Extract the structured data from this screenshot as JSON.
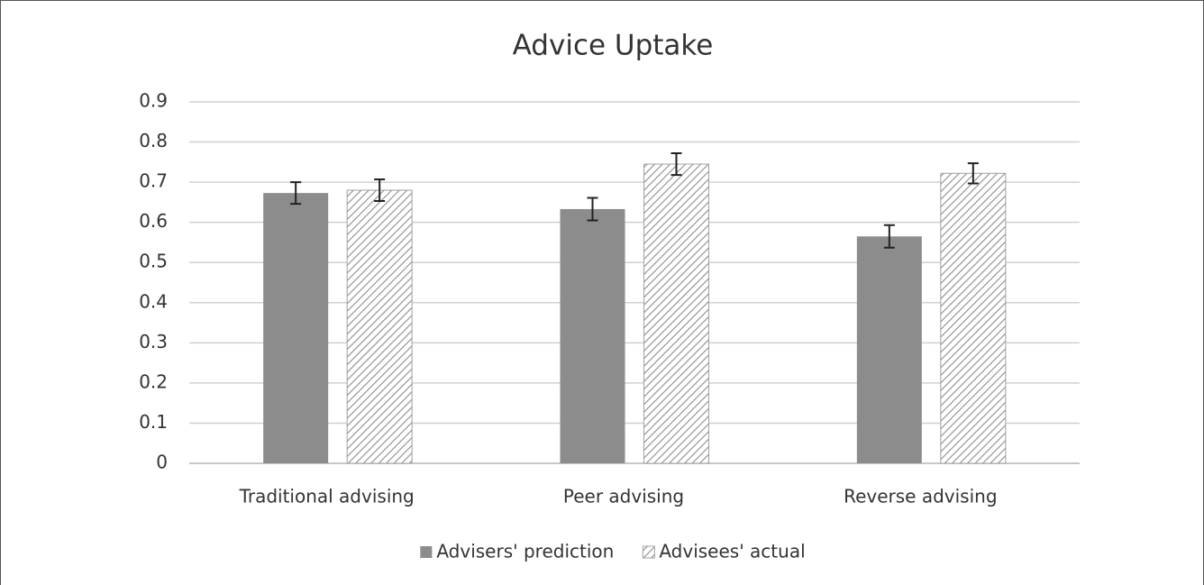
{
  "chart_data": {
    "type": "bar",
    "title": "Advice Uptake",
    "categories": [
      "Traditional advising",
      "Peer advising",
      "Reverse advising"
    ],
    "series": [
      {
        "name": "Advisers' prediction",
        "color": "#8c8c8c",
        "hatch": false,
        "values": [
          0.673,
          0.633,
          0.565
        ],
        "errors": [
          0.027,
          0.028,
          0.028
        ]
      },
      {
        "name": "Advisees' actual",
        "color": "#8c8c8c",
        "hatch": true,
        "values": [
          0.68,
          0.745,
          0.722
        ],
        "errors": [
          0.027,
          0.027,
          0.025
        ]
      }
    ],
    "ylim": [
      0,
      0.9
    ],
    "yticks": [
      0,
      0.1,
      0.2,
      0.3,
      0.4,
      0.5,
      0.6,
      0.7,
      0.8,
      0.9
    ],
    "grid": true,
    "legend": "bottom"
  }
}
